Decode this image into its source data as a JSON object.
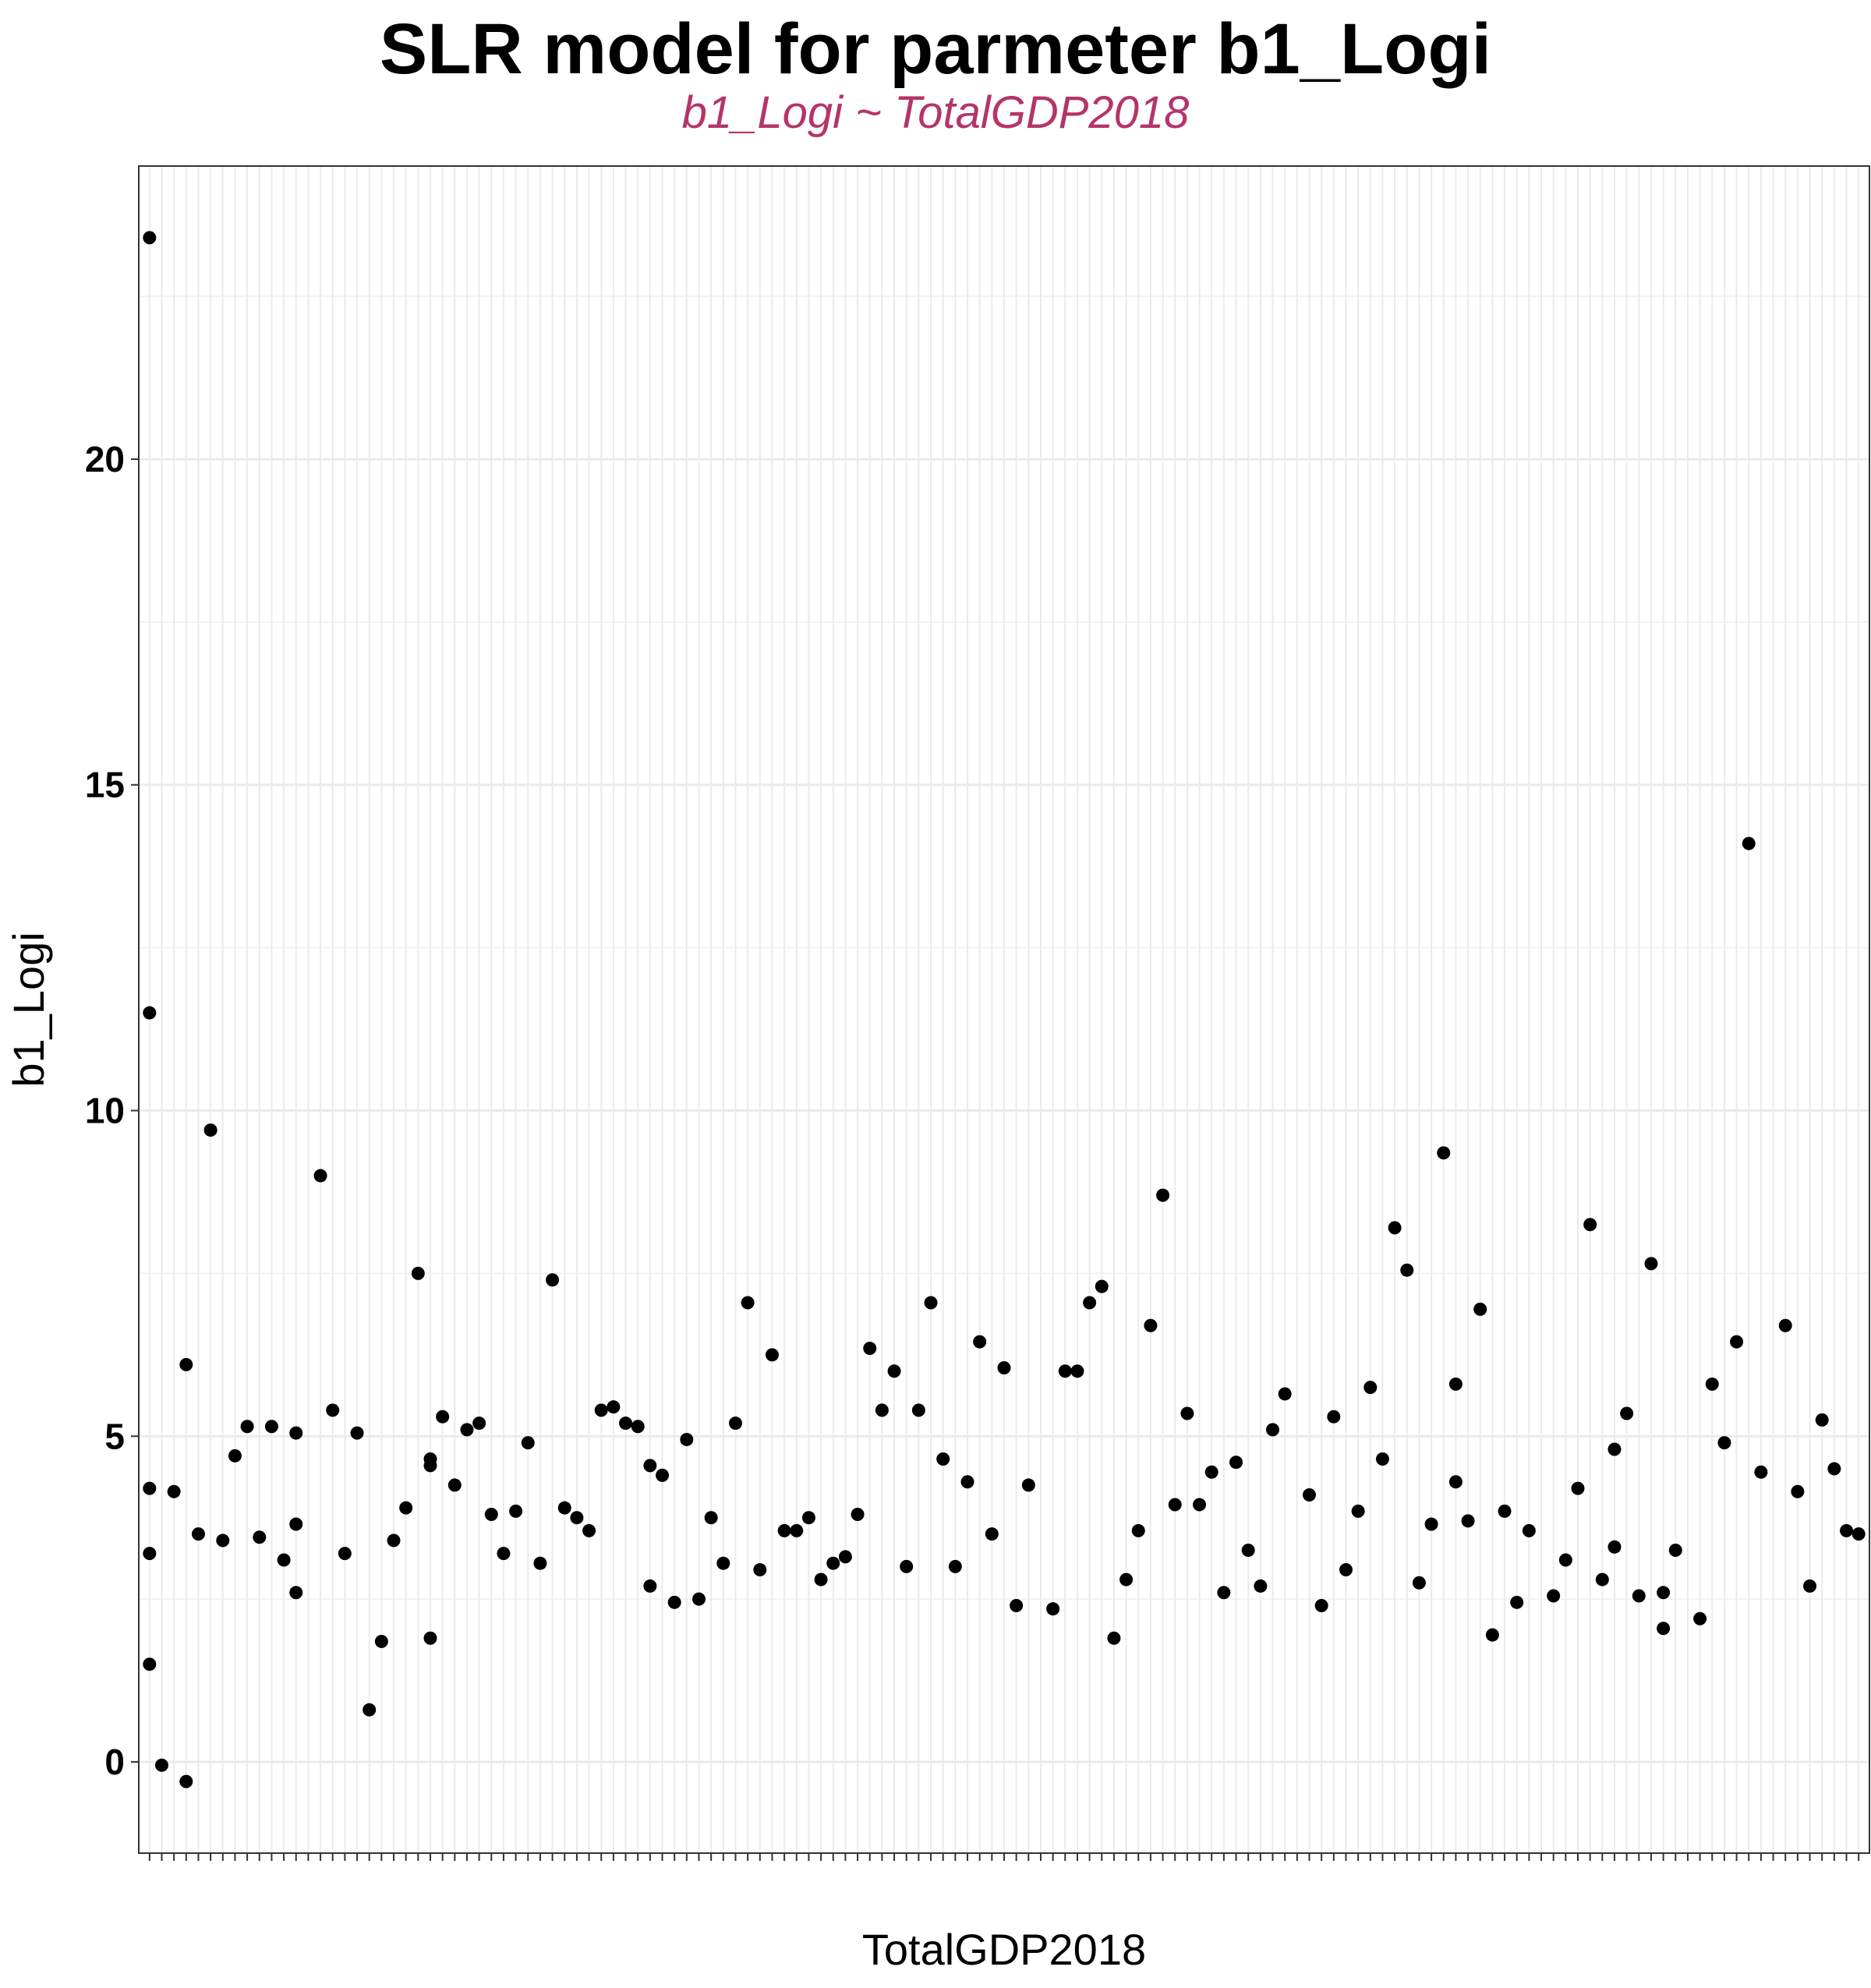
{
  "chart_data": {
    "type": "scatter",
    "title": "SLR model for parmeter b1_Logi",
    "subtitle": "b1_Logi ~ TotalGDP2018",
    "xlabel": "TotalGDP2018",
    "ylabel": "b1_Logi",
    "x_axis": "categorical",
    "ylim": [
      -1.4,
      24.5
    ],
    "yticks": [
      0,
      5,
      10,
      15,
      20
    ],
    "grid": true,
    "legend": "none",
    "point_color": "#000000",
    "subtitle_color": "#b5346a",
    "points": [
      [
        1,
        23.4
      ],
      [
        1,
        11.5
      ],
      [
        1,
        4.2
      ],
      [
        1,
        3.2
      ],
      [
        1,
        1.5
      ],
      [
        2,
        -0.05
      ],
      [
        3,
        4.15
      ],
      [
        4,
        6.1
      ],
      [
        4,
        -0.3
      ],
      [
        5,
        3.5
      ],
      [
        6,
        9.7
      ],
      [
        7,
        3.4
      ],
      [
        8,
        4.7
      ],
      [
        9,
        5.15
      ],
      [
        10,
        3.45
      ],
      [
        11,
        5.15
      ],
      [
        12,
        3.1
      ],
      [
        13,
        5.05
      ],
      [
        13,
        3.65
      ],
      [
        13,
        2.6
      ],
      [
        15,
        9.0
      ],
      [
        16,
        5.4
      ],
      [
        17,
        3.2
      ],
      [
        18,
        5.05
      ],
      [
        19,
        0.8
      ],
      [
        20,
        1.85
      ],
      [
        21,
        3.4
      ],
      [
        22,
        3.9
      ],
      [
        23,
        7.5
      ],
      [
        24,
        4.65
      ],
      [
        24,
        4.55
      ],
      [
        24,
        1.9
      ],
      [
        25,
        5.3
      ],
      [
        26,
        4.25
      ],
      [
        27,
        5.1
      ],
      [
        28,
        5.2
      ],
      [
        29,
        3.8
      ],
      [
        30,
        3.2
      ],
      [
        31,
        3.85
      ],
      [
        32,
        4.9
      ],
      [
        33,
        3.05
      ],
      [
        34,
        7.4
      ],
      [
        35,
        3.9
      ],
      [
        36,
        3.75
      ],
      [
        37,
        3.55
      ],
      [
        38,
        5.4
      ],
      [
        39,
        5.45
      ],
      [
        40,
        5.2
      ],
      [
        41,
        5.15
      ],
      [
        42,
        4.55
      ],
      [
        42,
        2.7
      ],
      [
        43,
        4.4
      ],
      [
        44,
        2.45
      ],
      [
        45,
        4.95
      ],
      [
        46,
        2.5
      ],
      [
        47,
        3.75
      ],
      [
        48,
        3.05
      ],
      [
        49,
        5.2
      ],
      [
        50,
        7.05
      ],
      [
        51,
        2.95
      ],
      [
        52,
        6.25
      ],
      [
        53,
        3.55
      ],
      [
        54,
        3.55
      ],
      [
        55,
        3.75
      ],
      [
        56,
        2.8
      ],
      [
        57,
        3.05
      ],
      [
        58,
        3.15
      ],
      [
        59,
        3.8
      ],
      [
        60,
        6.35
      ],
      [
        61,
        5.4
      ],
      [
        62,
        6.0
      ],
      [
        63,
        3.0
      ],
      [
        64,
        5.4
      ],
      [
        65,
        7.05
      ],
      [
        66,
        4.65
      ],
      [
        67,
        3.0
      ],
      [
        68,
        4.3
      ],
      [
        69,
        6.45
      ],
      [
        70,
        3.5
      ],
      [
        71,
        6.05
      ],
      [
        72,
        2.4
      ],
      [
        73,
        4.25
      ],
      [
        75,
        2.35
      ],
      [
        76,
        6.0
      ],
      [
        77,
        6.0
      ],
      [
        78,
        7.05
      ],
      [
        79,
        7.3
      ],
      [
        80,
        1.9
      ],
      [
        81,
        2.8
      ],
      [
        82,
        3.55
      ],
      [
        83,
        6.7
      ],
      [
        84,
        8.7
      ],
      [
        85,
        3.95
      ],
      [
        86,
        5.35
      ],
      [
        87,
        3.95
      ],
      [
        88,
        4.45
      ],
      [
        89,
        2.6
      ],
      [
        90,
        4.6
      ],
      [
        91,
        3.25
      ],
      [
        92,
        2.7
      ],
      [
        93,
        5.1
      ],
      [
        94,
        5.65
      ],
      [
        96,
        4.1
      ],
      [
        97,
        2.4
      ],
      [
        98,
        5.3
      ],
      [
        99,
        2.95
      ],
      [
        100,
        3.85
      ],
      [
        101,
        5.75
      ],
      [
        102,
        4.65
      ],
      [
        103,
        8.2
      ],
      [
        104,
        7.55
      ],
      [
        105,
        2.75
      ],
      [
        106,
        3.65
      ],
      [
        107,
        9.35
      ],
      [
        108,
        5.8
      ],
      [
        108,
        4.3
      ],
      [
        109,
        3.7
      ],
      [
        110,
        6.95
      ],
      [
        111,
        1.95
      ],
      [
        112,
        3.85
      ],
      [
        113,
        2.45
      ],
      [
        114,
        3.55
      ],
      [
        116,
        2.55
      ],
      [
        117,
        3.1
      ],
      [
        118,
        4.2
      ],
      [
        119,
        8.25
      ],
      [
        120,
        2.8
      ],
      [
        121,
        4.8
      ],
      [
        121,
        3.3
      ],
      [
        122,
        5.35
      ],
      [
        123,
        2.55
      ],
      [
        124,
        7.65
      ],
      [
        125,
        2.6
      ],
      [
        125,
        2.05
      ],
      [
        126,
        3.25
      ],
      [
        128,
        2.2
      ],
      [
        129,
        5.8
      ],
      [
        130,
        4.9
      ],
      [
        131,
        6.45
      ],
      [
        132,
        14.1
      ],
      [
        133,
        4.45
      ],
      [
        135,
        6.7
      ],
      [
        136,
        4.15
      ],
      [
        137,
        2.7
      ],
      [
        138,
        5.25
      ],
      [
        139,
        4.5
      ],
      [
        140,
        3.55
      ],
      [
        141,
        3.5
      ]
    ]
  }
}
